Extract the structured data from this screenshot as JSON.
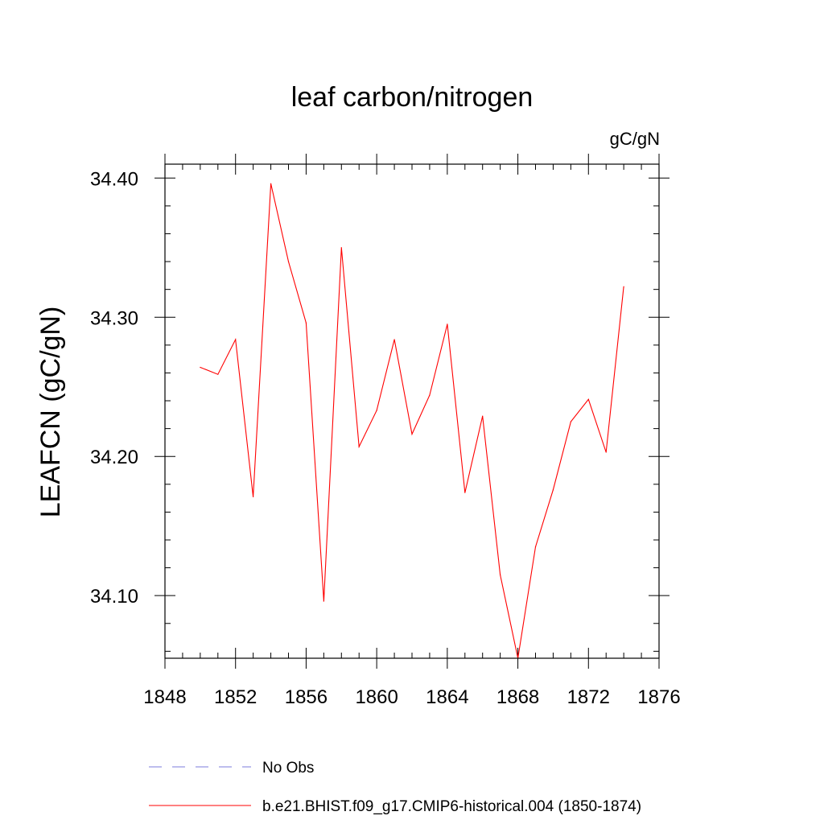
{
  "chart_data": {
    "type": "line",
    "title": "leaf carbon/nitrogen",
    "units_label": "gC/gN",
    "ylabel": "LEAFCN  (gC/gN)",
    "xlabel": "",
    "xlim": [
      1848,
      1876
    ],
    "ylim": [
      34.055,
      34.41
    ],
    "x_ticks": [
      1848,
      1852,
      1856,
      1860,
      1864,
      1868,
      1872,
      1876
    ],
    "y_ticks": [
      34.1,
      34.2,
      34.3,
      34.4
    ],
    "y_tick_labels": [
      "34.10",
      "34.20",
      "34.30",
      "34.40"
    ],
    "x_minor_step": 1,
    "y_minor_step": 0.02,
    "grid": false,
    "series": [
      {
        "name": "b.e21.BHIST.f09_g17.CMIP6-historical.004 (1850-1874)",
        "color": "#ff0000",
        "dash": "solid",
        "x": [
          1850,
          1851,
          1852,
          1853,
          1854,
          1855,
          1856,
          1857,
          1858,
          1859,
          1860,
          1861,
          1862,
          1863,
          1864,
          1865,
          1866,
          1867,
          1868,
          1869,
          1870,
          1871,
          1872,
          1873,
          1874
        ],
        "values": [
          34.264,
          34.259,
          34.284,
          34.171,
          34.396,
          34.34,
          34.296,
          34.096,
          34.35,
          34.207,
          34.233,
          34.284,
          34.216,
          34.244,
          34.295,
          34.174,
          34.229,
          34.115,
          34.055,
          34.135,
          34.176,
          34.225,
          34.241,
          34.203,
          34.322
        ]
      }
    ],
    "legend": [
      {
        "label": "No Obs",
        "color": "#7b7bdc",
        "dash": "dashed"
      },
      {
        "label": "b.e21.BHIST.f09_g17.CMIP6-historical.004 (1850-1874)",
        "color": "#ff0000",
        "dash": "solid"
      }
    ],
    "legend_position": "bottom"
  }
}
